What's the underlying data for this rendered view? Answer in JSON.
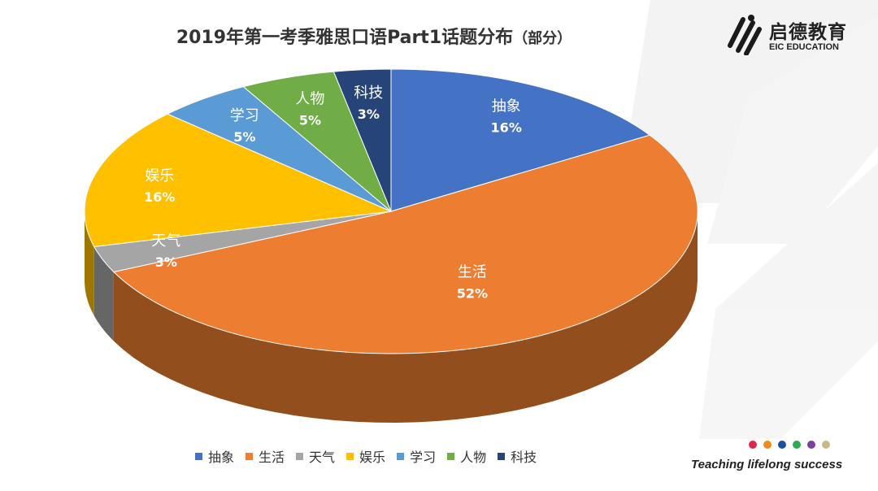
{
  "page": {
    "title": "2019年第一考季雅思口语Part1话题分布",
    "title_suffix": "（部分）"
  },
  "brand": {
    "name": "启德教育",
    "english": "EIC EDUCATION",
    "tagline": "Teaching lifelong success",
    "dot_colors": [
      "#e0264e",
      "#f08c1e",
      "#1f4e9c",
      "#2fa84f",
      "#7a3fa0",
      "#c8b88a"
    ]
  },
  "chart_data": {
    "type": "pie",
    "title": "2019年第一考季雅思口语Part1话题分布（部分）",
    "legend_position": "bottom",
    "slices": [
      {
        "label": "抽象",
        "value": 16,
        "display": "16%",
        "color": "#4472C4"
      },
      {
        "label": "生活",
        "value": 52,
        "display": "52%",
        "color": "#ED7D31"
      },
      {
        "label": "天气",
        "value": 3,
        "display": "3%",
        "color": "#A5A5A5"
      },
      {
        "label": "娱乐",
        "value": 16,
        "display": "16%",
        "color": "#FFC000"
      },
      {
        "label": "学习",
        "value": 5,
        "display": "5%",
        "color": "#5B9BD5"
      },
      {
        "label": "人物",
        "value": 5,
        "display": "5%",
        "color": "#70AD47"
      },
      {
        "label": "科技",
        "value": 3,
        "display": "3%",
        "color": "#264478"
      }
    ]
  }
}
